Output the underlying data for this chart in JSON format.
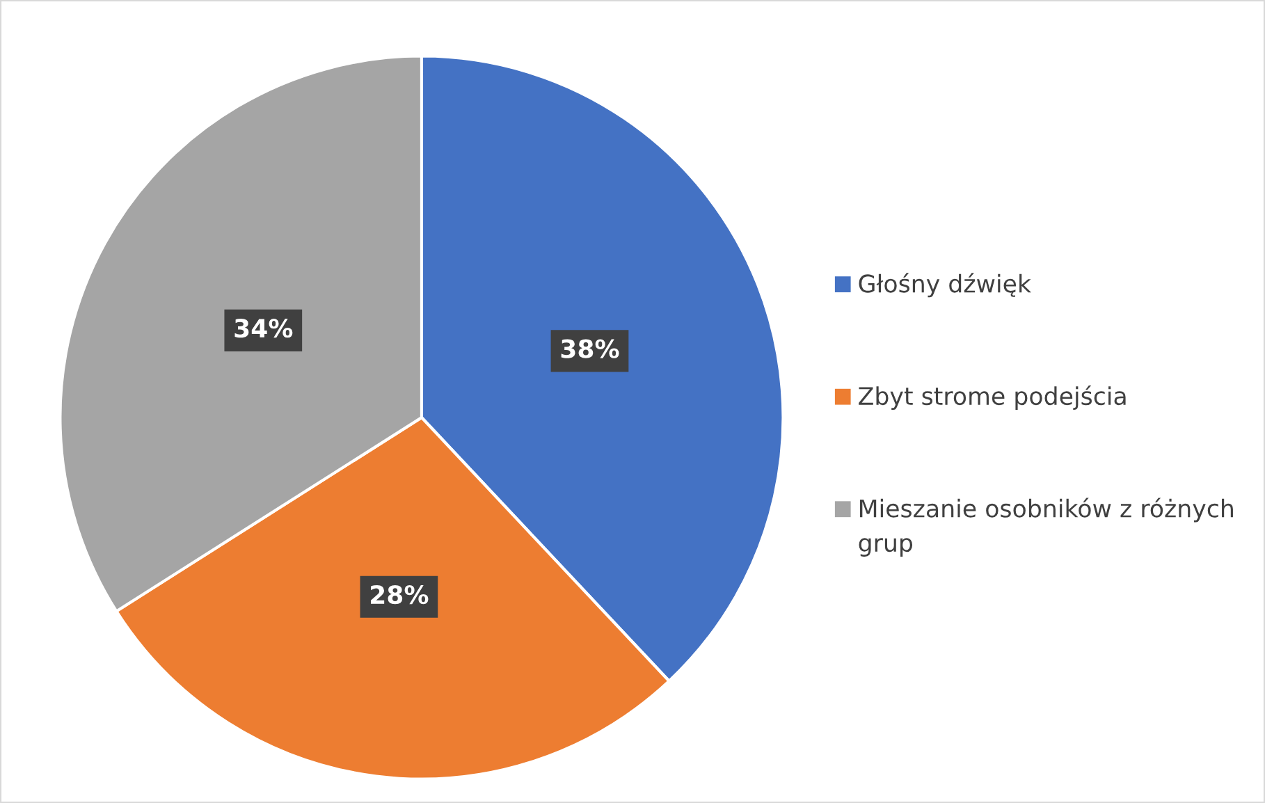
{
  "chart_data": {
    "type": "pie",
    "categories": [
      "Głośny dźwięk",
      "Zbyt strome podejścia",
      "Mieszanie osobników z różnych grup"
    ],
    "values": [
      38,
      28,
      34
    ],
    "colors": [
      "#4472c4",
      "#ed7d31",
      "#a5a5a5"
    ],
    "value_labels": [
      "38%",
      "28%",
      "34%"
    ],
    "legend": "right"
  }
}
